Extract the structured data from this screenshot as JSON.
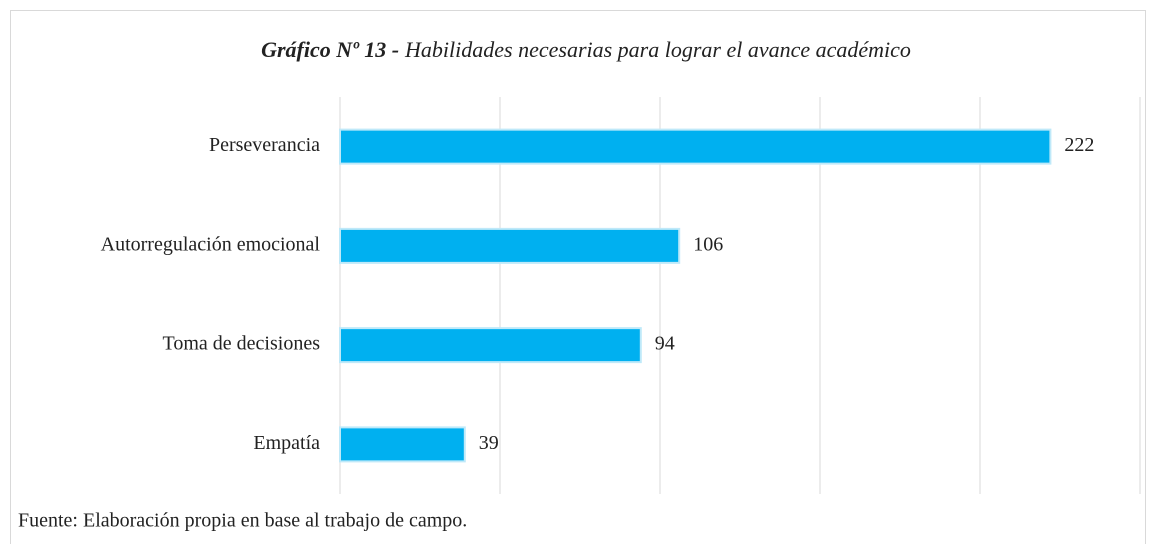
{
  "chart_data": {
    "type": "bar",
    "orientation": "horizontal",
    "title_label": "Gráfico Nº 13 -",
    "title": "Habilidades necesarias para lograr el avance académico",
    "categories": [
      "Perseverancia",
      "Autorregulación emocional",
      "Toma de decisiones",
      "Empatía"
    ],
    "values": [
      222,
      106,
      94,
      39
    ],
    "color": "#00b0f0",
    "xlim": [
      0,
      250
    ],
    "xticks": [
      0,
      50,
      100,
      150,
      200,
      250
    ],
    "show_tick_labels": false,
    "grid": true,
    "note": "Fuente: Elaboración propia en base al trabajo de campo."
  }
}
